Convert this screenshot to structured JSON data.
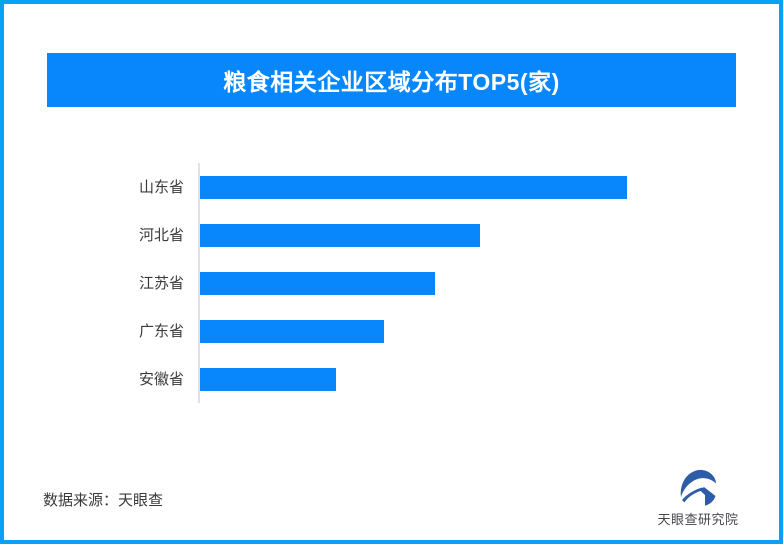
{
  "theme": {
    "accent_blue": "#0787FB",
    "frame_blue": "#09A0F6",
    "logo_blue": "#2E5CA6",
    "text_dark": "#3A3A3A",
    "axis_gray": "#E2E2E2"
  },
  "header": {
    "title": "粮食相关企业区域分布TOP5(家)"
  },
  "chart_data": {
    "type": "bar",
    "orientation": "horizontal",
    "title": "粮食相关企业区域分布TOP5(家)",
    "categories": [
      "山东省",
      "河北省",
      "江苏省",
      "广东省",
      "安徽省"
    ],
    "values_relative_pct": [
      100,
      65.6,
      55.0,
      43.1,
      31.8
    ],
    "value_labels_shown": false,
    "xlabel": "",
    "ylabel": "",
    "grid": false,
    "legend": false,
    "bar_color": "#0787FB"
  },
  "footer": {
    "source_text": "数据来源：天眼查",
    "logo_text": "天眼查研究院"
  }
}
